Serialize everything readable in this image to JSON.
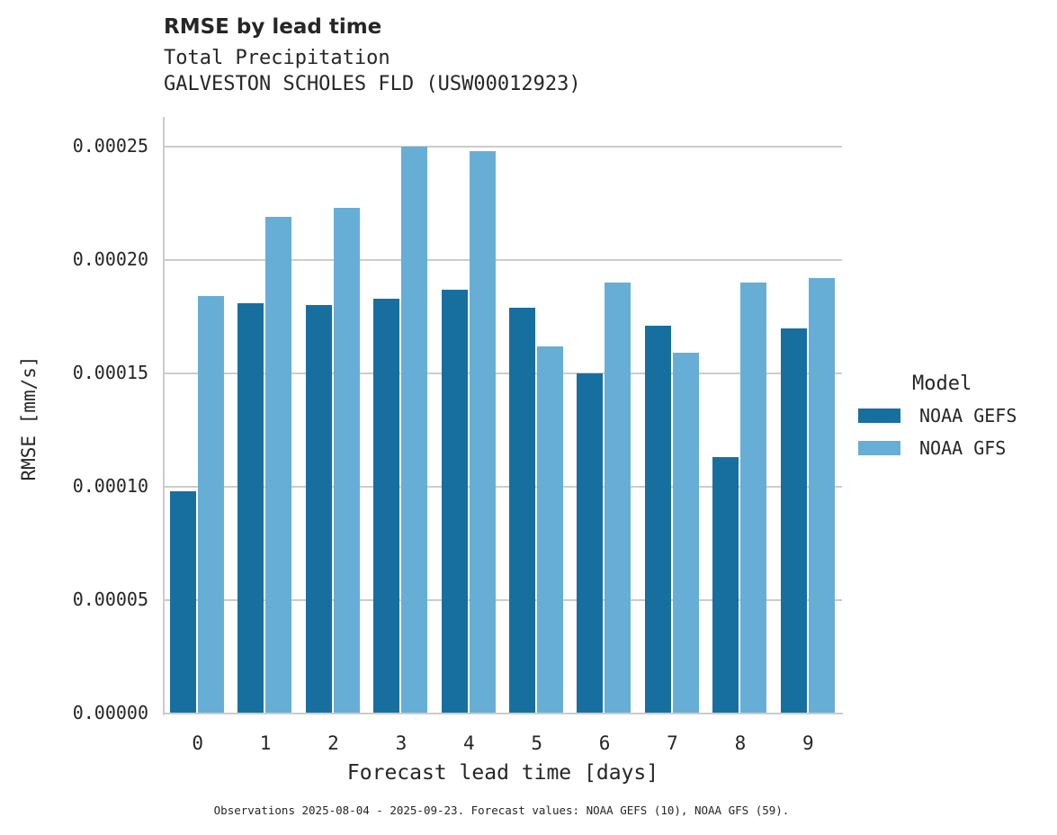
{
  "chart_data": {
    "type": "bar",
    "title": "RMSE by lead time",
    "subtitle": [
      "Total Precipitation",
      "GALVESTON SCHOLES FLD (USW00012923)"
    ],
    "xlabel": "Forecast lead time [days]",
    "ylabel": "RMSE [mm/s]",
    "categories": [
      "0",
      "1",
      "2",
      "3",
      "4",
      "5",
      "6",
      "7",
      "8",
      "9"
    ],
    "series": [
      {
        "name": "NOAA GEFS",
        "color": "#176fa0",
        "values": [
          9.8e-05,
          0.000181,
          0.00018,
          0.000183,
          0.000187,
          0.000179,
          0.00015,
          0.000171,
          0.000113,
          0.00017
        ]
      },
      {
        "name": "NOAA GFS",
        "color": "#67aed6",
        "values": [
          0.000184,
          0.000219,
          0.000223,
          0.00025,
          0.000248,
          0.000162,
          0.00019,
          0.000159,
          0.00019,
          0.000192
        ]
      }
    ],
    "yticks": [
      "0.00000",
      "0.00005",
      "0.00010",
      "0.00015",
      "0.00020",
      "0.00025"
    ],
    "ylim": [
      0,
      0.000263
    ],
    "grid": "y",
    "legend": {
      "title": "Model",
      "position": "right"
    }
  },
  "footer": "Observations 2025-08-04 - 2025-09-23. Forecast values: NOAA GEFS (10), NOAA GFS (59)."
}
